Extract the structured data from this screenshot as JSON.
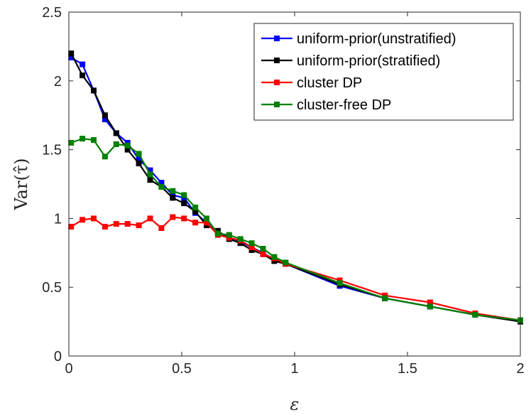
{
  "chart_data": {
    "type": "line",
    "title": "",
    "xlabel": "ε",
    "ylabel": "Var(τ̂)",
    "xlim": [
      0,
      2
    ],
    "ylim": [
      0,
      2.5
    ],
    "xticks": [
      0,
      0.5,
      1,
      1.5,
      2
    ],
    "xtick_labels": [
      "0",
      "0.5",
      "1",
      "1.5",
      "2"
    ],
    "yticks": [
      0,
      0.5,
      1,
      1.5,
      2,
      2.5
    ],
    "ytick_labels": [
      "0",
      "0.5",
      "1",
      "1.5",
      "2",
      "2.5"
    ],
    "grid": false,
    "legend_position": "top-right",
    "series": [
      {
        "name": "uniform-prior(unstratified)",
        "color": "#0000ff",
        "x": [
          0.01,
          0.06,
          0.11,
          0.16,
          0.21,
          0.26,
          0.31,
          0.36,
          0.41,
          0.46,
          0.51,
          0.56,
          0.61,
          0.66,
          0.71,
          0.76,
          0.81,
          0.86,
          0.91,
          0.96,
          1.2,
          1.4,
          1.6,
          1.8,
          2.0
        ],
        "y": [
          2.17,
          2.12,
          1.93,
          1.72,
          1.62,
          1.55,
          1.43,
          1.35,
          1.26,
          1.17,
          1.15,
          1.04,
          0.97,
          0.9,
          0.86,
          0.83,
          0.79,
          0.75,
          0.7,
          0.67,
          0.51,
          0.42,
          0.36,
          0.3,
          0.26
        ]
      },
      {
        "name": "uniform-prior(stratified)",
        "color": "#000000",
        "x": [
          0.01,
          0.06,
          0.11,
          0.16,
          0.21,
          0.26,
          0.31,
          0.36,
          0.41,
          0.46,
          0.51,
          0.56,
          0.61,
          0.66,
          0.71,
          0.76,
          0.81,
          0.86,
          0.91,
          0.96,
          1.2,
          1.4,
          1.6,
          1.8,
          2.0
        ],
        "y": [
          2.2,
          2.04,
          1.93,
          1.75,
          1.62,
          1.5,
          1.4,
          1.28,
          1.23,
          1.15,
          1.11,
          1.05,
          0.95,
          0.91,
          0.85,
          0.82,
          0.77,
          0.74,
          0.69,
          0.67,
          0.52,
          0.42,
          0.36,
          0.3,
          0.25
        ]
      },
      {
        "name": "cluster DP",
        "color": "#ff0000",
        "x": [
          0.01,
          0.06,
          0.11,
          0.16,
          0.21,
          0.26,
          0.31,
          0.36,
          0.41,
          0.46,
          0.51,
          0.56,
          0.61,
          0.66,
          0.71,
          0.76,
          0.81,
          0.86,
          0.91,
          0.96,
          1.2,
          1.4,
          1.6,
          1.8,
          2.0
        ],
        "y": [
          0.94,
          0.99,
          1.0,
          0.94,
          0.96,
          0.96,
          0.95,
          1.0,
          0.93,
          1.01,
          1.0,
          0.97,
          0.97,
          0.88,
          0.86,
          0.84,
          0.79,
          0.74,
          0.71,
          0.67,
          0.55,
          0.44,
          0.39,
          0.31,
          0.26
        ]
      },
      {
        "name": "cluster-free DP",
        "color": "#008000",
        "x": [
          0.01,
          0.06,
          0.11,
          0.16,
          0.21,
          0.26,
          0.31,
          0.36,
          0.41,
          0.46,
          0.51,
          0.56,
          0.61,
          0.66,
          0.71,
          0.76,
          0.81,
          0.86,
          0.91,
          0.96,
          1.2,
          1.4,
          1.6,
          1.8,
          2.0
        ],
        "y": [
          1.55,
          1.58,
          1.57,
          1.45,
          1.54,
          1.53,
          1.47,
          1.32,
          1.23,
          1.2,
          1.17,
          1.08,
          1.0,
          0.89,
          0.88,
          0.85,
          0.82,
          0.78,
          0.72,
          0.68,
          0.53,
          0.42,
          0.36,
          0.3,
          0.26
        ]
      }
    ]
  }
}
